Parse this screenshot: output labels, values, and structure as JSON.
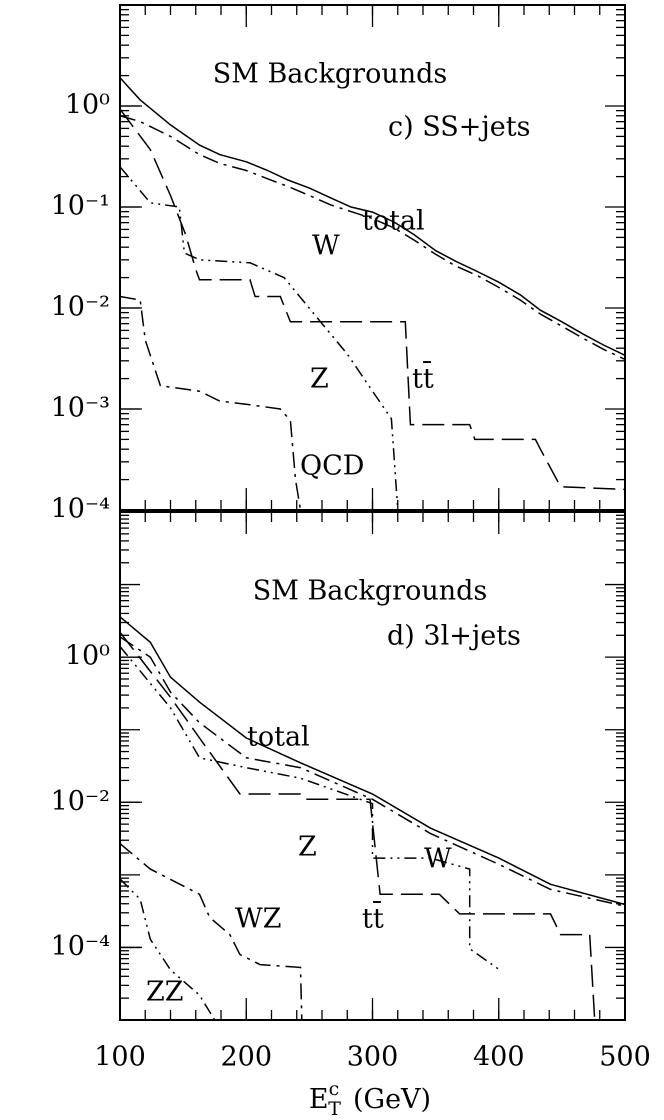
{
  "chart_data": [
    {
      "type": "line",
      "log_y": true,
      "show_x_tick_labels": false,
      "xlim": [
        100,
        500
      ],
      "xticks": [
        100,
        200,
        300,
        400,
        500
      ],
      "ylim": [
        0.0001,
        10
      ],
      "yticks": [
        {
          "value": 0.0001,
          "label": "10⁻⁴"
        },
        {
          "value": 0.001,
          "label": "10⁻³"
        },
        {
          "value": 0.01,
          "label": "10⁻²"
        },
        {
          "value": 0.1,
          "label": "10⁻¹"
        },
        {
          "value": 1,
          "label": "10⁰"
        }
      ],
      "annotations": [
        "SM Backgrounds",
        "c) SS+jets",
        "total",
        "W",
        "Z",
        "tt̄",
        "QCD"
      ],
      "series": [
        {
          "color": "#000",
          "style": "solid",
          "x": [
            100,
            116,
            140,
            163,
            179,
            200,
            217,
            233,
            250,
            267,
            283,
            300,
            317,
            333,
            350,
            366,
            383,
            400,
            417,
            433,
            450,
            467,
            483,
            500
          ],
          "values": [
            1.9,
            1.15,
            0.65,
            0.41,
            0.33,
            0.28,
            0.23,
            0.185,
            0.154,
            0.123,
            0.1,
            0.089,
            0.071,
            0.053,
            0.037,
            0.029,
            0.023,
            0.018,
            0.0135,
            0.0095,
            0.0073,
            0.0055,
            0.0043,
            0.0034
          ]
        },
        {
          "color": "#000",
          "style": "dashdot",
          "x": [
            100,
            116,
            140,
            163,
            179,
            200,
            217,
            233,
            250,
            267,
            283,
            300,
            317,
            333,
            350,
            366,
            383,
            400,
            417,
            433,
            450,
            467,
            483,
            500
          ],
          "values": [
            0.8,
            0.7,
            0.5,
            0.33,
            0.27,
            0.23,
            0.19,
            0.16,
            0.13,
            0.105,
            0.09,
            0.077,
            0.062,
            0.047,
            0.034,
            0.026,
            0.021,
            0.016,
            0.012,
            0.0087,
            0.0066,
            0.005,
            0.0039,
            0.0031
          ]
        },
        {
          "color": "#000",
          "style": "dash",
          "x": [
            100,
            124,
            140,
            152,
            160,
            163,
            203,
            207,
            227,
            235,
            326,
            330,
            377,
            381,
            429,
            433,
            449,
            500
          ],
          "values": [
            0.93,
            0.37,
            0.13,
            0.053,
            0.024,
            0.019,
            0.019,
            0.013,
            0.013,
            0.0073,
            0.0073,
            0.0007,
            0.0007,
            0.0005,
            0.0005,
            0.0004,
            0.00017,
            0.00016
          ]
        },
        {
          "color": "#000",
          "style": "dashdotdot",
          "x": [
            100,
            124,
            147,
            151,
            163,
            203,
            230,
            260,
            280,
            300,
            315,
            320
          ],
          "values": [
            0.25,
            0.11,
            0.1,
            0.035,
            0.03,
            0.028,
            0.02,
            0.007,
            0.0035,
            0.0015,
            0.0008,
            0.0001
          ]
        },
        {
          "color": "#000",
          "style": "dashdot",
          "x": [
            100,
            116,
            120,
            132,
            163,
            179,
            203,
            227,
            235,
            239,
            243
          ],
          "values": [
            0.013,
            0.012,
            0.0048,
            0.0017,
            0.0015,
            0.0012,
            0.0011,
            0.001,
            0.00077,
            0.0002,
            0.0001
          ]
        }
      ]
    },
    {
      "type": "line",
      "log_y": true,
      "show_x_tick_labels": true,
      "xlim": [
        100,
        500
      ],
      "xticks": [
        100,
        200,
        300,
        400,
        500
      ],
      "ylim": [
        1e-05,
        100
      ],
      "yticks": [
        {
          "value": 0.0001,
          "label": "10⁻⁴"
        },
        {
          "value": 0.01,
          "label": "10⁻²"
        },
        {
          "value": 1,
          "label": "10⁰"
        }
      ],
      "x_label": {
        "symbol": "E",
        "sub": "T",
        "sup": "c",
        "unit": "(GeV)"
      },
      "annotations": [
        "SM Backgrounds",
        "d) 3l+jets",
        "total",
        "Z",
        "W",
        "tt̄",
        "WZ",
        "ZZ"
      ],
      "series": [
        {
          "color": "#000",
          "style": "solid",
          "x": [
            100,
            124,
            140,
            163,
            200,
            243,
            300,
            346,
            400,
            441,
            500
          ],
          "values": [
            3.6,
            1.6,
            0.53,
            0.24,
            0.077,
            0.035,
            0.013,
            0.0044,
            0.0017,
            0.00074,
            0.00039
          ]
        },
        {
          "color": "#000",
          "style": "dashdot",
          "x": [
            100,
            124,
            140,
            163,
            200,
            243,
            300,
            346,
            400,
            441,
            500
          ],
          "values": [
            1.9,
            1,
            0.33,
            0.125,
            0.041,
            0.03,
            0.011,
            0.0037,
            0.0014,
            0.00063,
            0.00037
          ]
        },
        {
          "color": "#000",
          "style": "dashdotdot",
          "x": [
            100,
            140,
            163,
            200,
            243,
            300,
            300,
            346,
            377,
            377,
            400
          ],
          "values": [
            1.4,
            0.2,
            0.041,
            0.03,
            0.0215,
            0.0096,
            0.0017,
            0.0017,
            0.0012,
            9.6e-05,
            5e-05
          ]
        },
        {
          "color": "#000",
          "style": "dash",
          "x": [
            100,
            140,
            163,
            195,
            243,
            247,
            298,
            306,
            353,
            369,
            441,
            449,
            472,
            476
          ],
          "values": [
            2.2,
            0.28,
            0.077,
            0.013,
            0.013,
            0.011,
            0.011,
            0.00054,
            0.00054,
            0.00029,
            0.00029,
            0.00015,
            0.00015,
            1e-05
          ]
        },
        {
          "color": "#000",
          "style": "dashdot",
          "x": [
            100,
            124,
            163,
            171,
            187,
            195,
            211,
            243,
            244
          ],
          "values": [
            0.0027,
            0.0012,
            0.00054,
            0.00026,
            0.00015,
            8e-05,
            5.8e-05,
            5.3e-05,
            1e-05
          ]
        },
        {
          "color": "#000",
          "style": "dashdotdot",
          "x": [
            100,
            116,
            124,
            140,
            163,
            175
          ],
          "values": [
            0.00088,
            0.00046,
            0.00013,
            4.9e-05,
            2.2e-05,
            1e-05
          ]
        }
      ]
    }
  ]
}
